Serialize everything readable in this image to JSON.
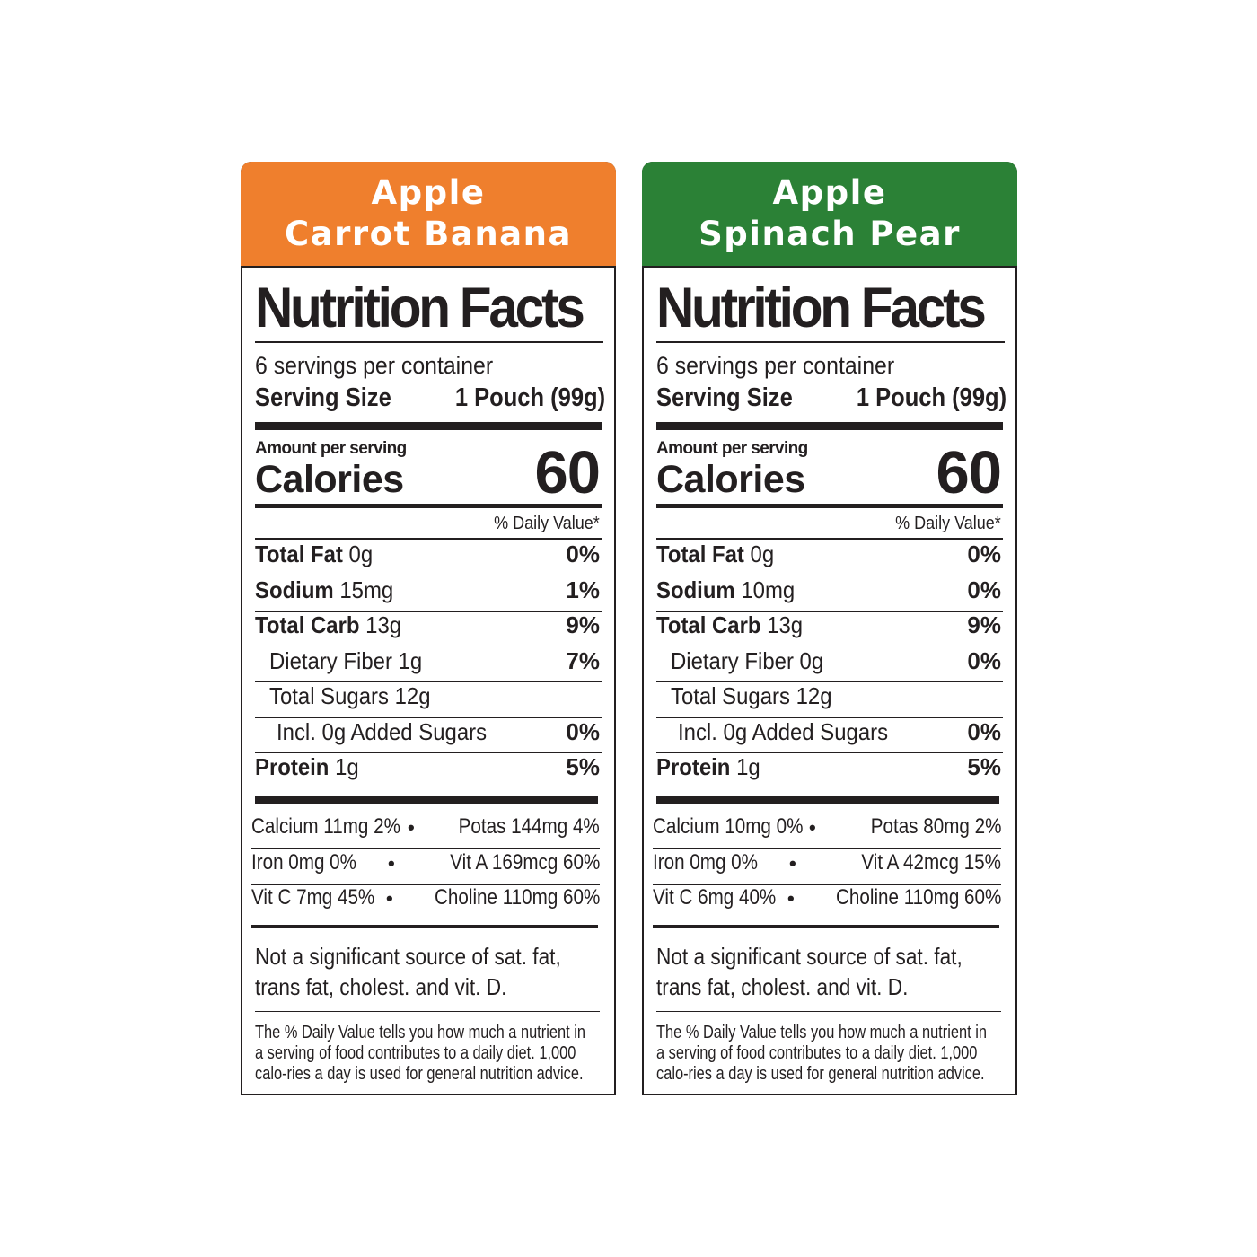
{
  "labels": [
    {
      "banner": {
        "line1": "Apple",
        "line2": "Carrot Banana",
        "color": "#ef7f2d"
      },
      "title": "Nutrition Facts",
      "servings": "6 servings per container",
      "serving_size": {
        "label": "Serving Size",
        "value": "1 Pouch (99g)"
      },
      "amount_per_serving": "Amount per serving",
      "calories": {
        "label": "Calories",
        "value": "60"
      },
      "dv_header": "% Daily Value*",
      "nutrients": [
        {
          "name": "Total Fat",
          "amount": "0g",
          "dv": "0%"
        },
        {
          "name": "Sodium",
          "amount": "15mg",
          "dv": "1%"
        },
        {
          "name": "Total Carb",
          "amount": "13g",
          "dv": "9%"
        },
        {
          "name": "Dietary Fiber 1g",
          "amount": "",
          "dv": "7%"
        },
        {
          "name": "Total Sugars 12g",
          "amount": "",
          "dv": ""
        },
        {
          "name": "Incl. 0g Added Sugars",
          "amount": "",
          "dv": "0%"
        },
        {
          "name": "Protein",
          "amount": "1g",
          "dv": "5%"
        }
      ],
      "vitamins": [
        {
          "left": "Calcium 11mg 2%",
          "right": "Potas 144mg 4%"
        },
        {
          "left": "Iron 0mg 0%",
          "right": "Vit A 169mcg 60%"
        },
        {
          "left": "Vit C 7mg 45%",
          "right": "Choline 110mg 60%"
        }
      ],
      "bullet": "•",
      "not_significant": "Not a significant source of sat. fat, trans fat, cholest. and vit. D.",
      "footnote": "The % Daily Value tells you how much a nutrient in a serving of food contributes to a daily diet. 1,000 calo-ries a day is used for general nutrition advice."
    },
    {
      "banner": {
        "line1": "Apple",
        "line2": "Spinach Pear",
        "color": "#2b8136"
      },
      "title": "Nutrition Facts",
      "servings": "6 servings per container",
      "serving_size": {
        "label": "Serving Size",
        "value": "1 Pouch (99g)"
      },
      "amount_per_serving": "Amount per serving",
      "calories": {
        "label": "Calories",
        "value": "60"
      },
      "dv_header": "% Daily Value*",
      "nutrients": [
        {
          "name": "Total Fat",
          "amount": "0g",
          "dv": "0%"
        },
        {
          "name": "Sodium",
          "amount": "10mg",
          "dv": "0%"
        },
        {
          "name": "Total Carb",
          "amount": "13g",
          "dv": "9%"
        },
        {
          "name": "Dietary Fiber 0g",
          "amount": "",
          "dv": "0%"
        },
        {
          "name": "Total Sugars 12g",
          "amount": "",
          "dv": ""
        },
        {
          "name": "Incl. 0g Added Sugars",
          "amount": "",
          "dv": "0%"
        },
        {
          "name": "Protein",
          "amount": "1g",
          "dv": "5%"
        }
      ],
      "vitamins": [
        {
          "left": "Calcium 10mg 0%",
          "right": "Potas 80mg 2%"
        },
        {
          "left": "Iron 0mg 0%",
          "right": "Vit A 42mcg 15%"
        },
        {
          "left": "Vit C 6mg 40%",
          "right": "Choline 110mg 60%"
        }
      ],
      "bullet": "•",
      "not_significant": "Not a significant source of sat. fat, trans fat, cholest. and vit. D.",
      "footnote": "The % Daily Value tells you how much a nutrient in a serving of food contributes to a daily diet. 1,000 calo-ries a day is used for general nutrition advice."
    }
  ]
}
